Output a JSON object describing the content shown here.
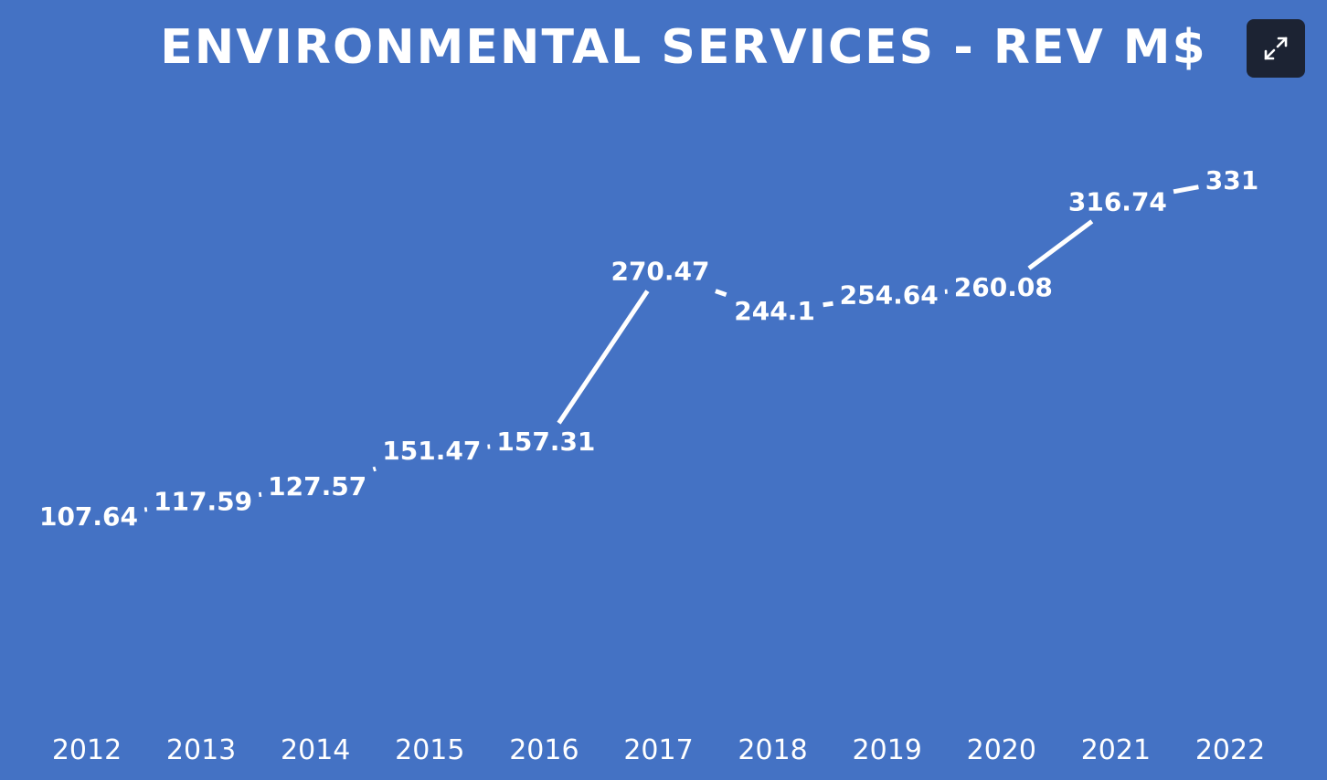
{
  "chart_data": {
    "type": "line",
    "title": "ENVIRONMENTAL SERVICES - REV M$",
    "categories": [
      "2012",
      "2013",
      "2014",
      "2015",
      "2016",
      "2017",
      "2018",
      "2019",
      "2020",
      "2021",
      "2022"
    ],
    "values": [
      107.64,
      117.59,
      127.57,
      151.47,
      157.31,
      270.47,
      244.1,
      254.64,
      260.08,
      316.74,
      331
    ],
    "value_labels": [
      "107.64",
      "117.59",
      "127.57",
      "151.47",
      "157.31",
      "270.47",
      "244.1",
      "254.64",
      "260.08",
      "316.74",
      "331"
    ],
    "grid": false,
    "legend": "none"
  },
  "colors": {
    "background": "#4472c4",
    "line": "#ffffff",
    "drop_line": "#ffffff",
    "button": "#1c2333"
  },
  "controls": {
    "expand_icon": "expand-arrows-icon"
  }
}
